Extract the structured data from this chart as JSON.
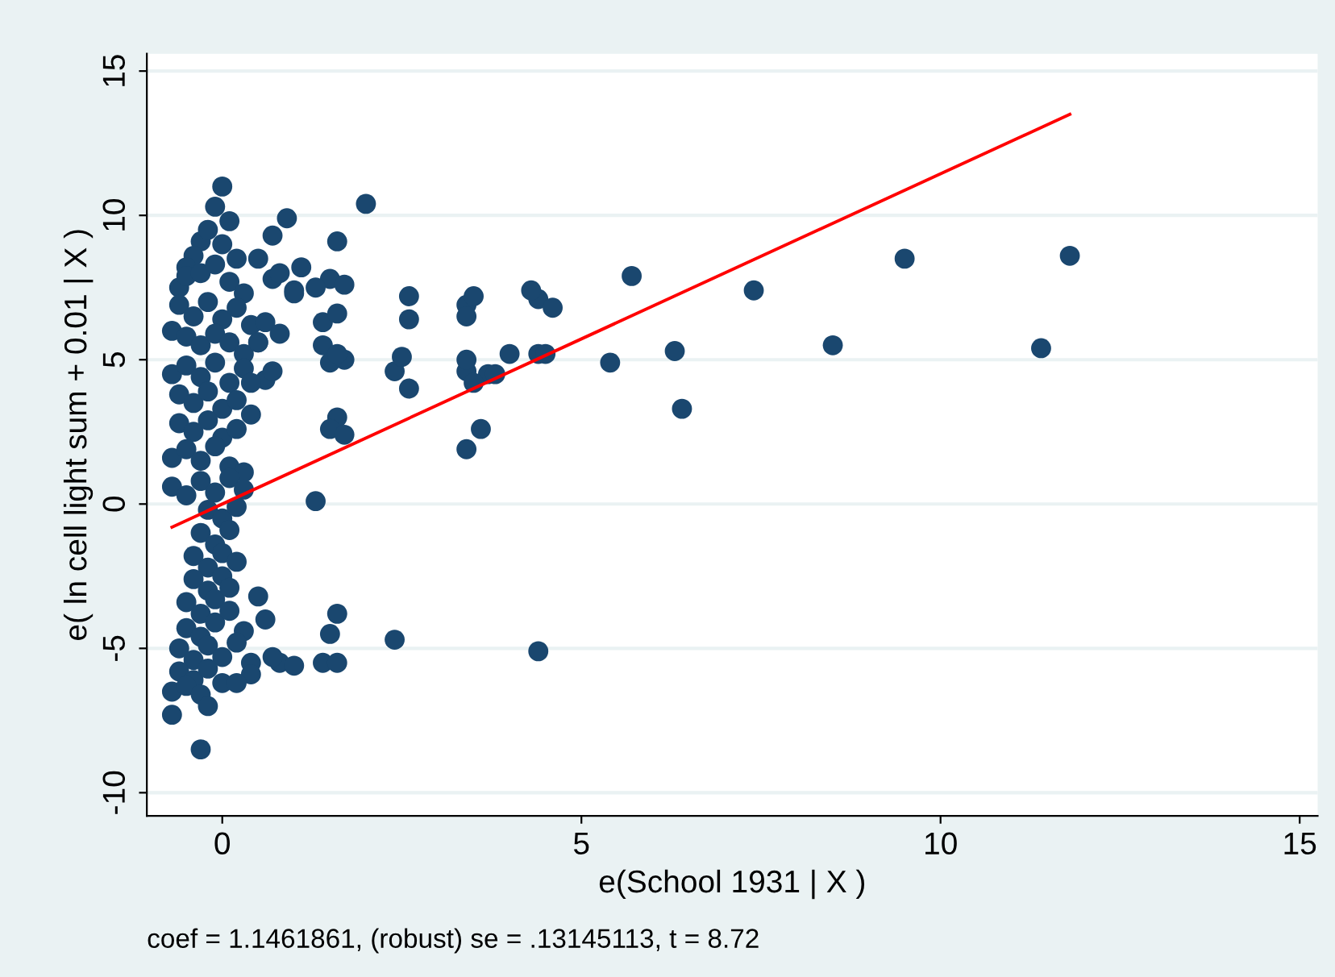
{
  "chart_data": {
    "type": "scatter",
    "xlabel": "e(School 1931 | X )",
    "ylabel": "e( ln cell light sum + 0.01 | X )",
    "annotations": [
      "coef = 1.1461861, (robust) se = .13145113, t = 8.72"
    ],
    "xlim": [
      -1.05,
      15.25
    ],
    "ylim": [
      -10.8,
      15.6
    ],
    "xticks": [
      0,
      5,
      10,
      15
    ],
    "yticks": [
      -10,
      -5,
      0,
      5,
      10,
      15
    ],
    "grid": "y",
    "marker": "circle",
    "series": [
      {
        "color": "#1a476f",
        "x": [
          0.0,
          -0.1,
          0.1,
          -0.3,
          -0.4,
          -0.5,
          -0.2,
          0.0,
          0.2,
          -0.6,
          -0.5,
          -0.3,
          -0.1,
          0.1,
          0.3,
          -0.6,
          -0.4,
          -0.2,
          0.0,
          0.2,
          0.4,
          -0.7,
          -0.5,
          -0.3,
          -0.1,
          0.1,
          0.3,
          0.5,
          -0.7,
          -0.5,
          -0.3,
          -0.1,
          0.1,
          0.3,
          0.6,
          -0.6,
          -0.4,
          -0.2,
          0.0,
          0.2,
          0.4,
          -0.6,
          -0.4,
          -0.2,
          0.0,
          0.2,
          -0.7,
          -0.5,
          -0.3,
          -0.1,
          0.1,
          0.3,
          -0.7,
          -0.5,
          -0.3,
          -0.1,
          0.1,
          0.3,
          -0.2,
          0.0,
          0.2,
          -0.3,
          -0.1,
          0.1,
          -0.4,
          -0.2,
          0.0,
          -0.4,
          -0.2,
          0.0,
          0.2,
          -0.5,
          -0.3,
          -0.1,
          0.1,
          -0.5,
          -0.3,
          -0.1,
          0.1,
          0.3,
          -0.6,
          -0.4,
          -0.2,
          0.0,
          0.2,
          0.4,
          -0.6,
          -0.4,
          -0.2,
          0.0,
          -0.7,
          -0.5,
          -0.3,
          -0.7,
          -0.3,
          -0.2,
          0.7,
          0.8,
          1.0,
          1.5,
          1.7,
          2.0,
          0.5,
          0.7,
          0.9,
          1.1,
          1.3,
          1.6,
          1.4,
          1.6,
          1.0,
          0.6,
          0.8,
          0.5,
          0.4,
          0.7,
          1.4,
          1.5,
          1.7,
          1.6,
          1.6,
          1.5,
          1.7,
          1.3,
          2.4,
          2.5,
          2.6,
          2.6,
          2.6,
          3.4,
          3.5,
          3.4,
          3.4,
          3.4,
          3.7,
          3.8,
          4.0,
          3.5,
          3.6,
          3.4,
          4.4,
          4.3,
          4.4,
          4.6,
          4.5,
          5.4,
          5.7,
          6.3,
          6.4,
          7.4,
          8.5,
          9.5,
          11.4,
          11.8,
          1.6,
          1.5,
          1.4,
          1.6,
          2.4,
          4.4,
          0.8,
          0.6,
          0.5,
          0.4,
          0.2,
          0.7,
          1.0
        ],
        "values": [
          11.0,
          10.3,
          9.8,
          9.1,
          8.6,
          8.2,
          9.5,
          9.0,
          8.5,
          7.5,
          7.9,
          8.0,
          8.3,
          7.7,
          7.3,
          6.9,
          6.5,
          7.0,
          6.4,
          6.8,
          6.2,
          6.0,
          5.8,
          5.5,
          5.9,
          5.6,
          5.2,
          5.6,
          4.5,
          4.8,
          4.4,
          4.9,
          4.2,
          4.7,
          4.3,
          3.8,
          3.5,
          3.9,
          3.3,
          3.6,
          3.1,
          2.8,
          2.5,
          2.9,
          2.3,
          2.6,
          1.6,
          1.9,
          1.5,
          2.0,
          1.3,
          1.1,
          0.6,
          0.3,
          0.8,
          0.4,
          0.9,
          0.5,
          -0.2,
          -0.5,
          -0.1,
          -1.0,
          -1.4,
          -0.9,
          -1.8,
          -2.2,
          -1.7,
          -2.6,
          -3.0,
          -2.5,
          -2.0,
          -3.4,
          -3.8,
          -3.3,
          -2.9,
          -4.3,
          -4.6,
          -4.1,
          -3.7,
          -4.4,
          -5.0,
          -5.4,
          -4.9,
          -5.3,
          -4.8,
          -5.5,
          -5.8,
          -6.1,
          -5.7,
          -6.2,
          -6.5,
          -6.3,
          -6.6,
          -7.3,
          -8.5,
          -7.0,
          7.8,
          8.0,
          7.4,
          7.8,
          7.6,
          10.4,
          8.5,
          9.3,
          9.9,
          8.2,
          7.5,
          9.1,
          6.3,
          6.6,
          7.3,
          6.3,
          5.9,
          5.6,
          4.2,
          4.6,
          5.5,
          4.9,
          5.0,
          5.2,
          3.0,
          2.6,
          2.4,
          0.1,
          4.6,
          5.1,
          4.0,
          6.4,
          7.2,
          6.9,
          7.2,
          6.5,
          4.6,
          5.0,
          4.5,
          4.5,
          5.2,
          4.2,
          2.6,
          1.9,
          7.1,
          7.4,
          5.2,
          6.8,
          5.2,
          4.9,
          7.9,
          5.3,
          3.3,
          7.4,
          5.5,
          8.5,
          5.4,
          8.6,
          -3.8,
          -4.5,
          -5.5,
          -5.5,
          -4.7,
          -5.1,
          -5.5,
          -4.0,
          -3.2,
          -5.9,
          -6.2,
          -5.3,
          -5.6
        ]
      },
      {
        "type": "line",
        "color": "#ff0000",
        "marker": "none",
        "x": [
          -0.7,
          11.8
        ],
        "values": [
          -0.8,
          13.5
        ]
      }
    ]
  }
}
